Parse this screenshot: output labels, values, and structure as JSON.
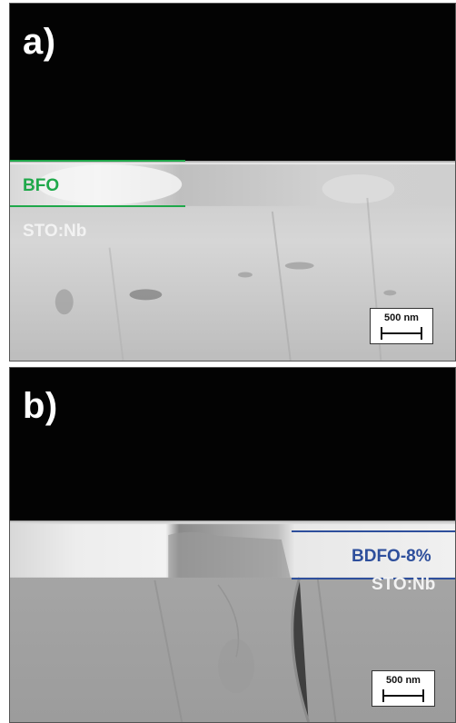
{
  "panels": [
    {
      "label": "a)",
      "layer": "BFO",
      "substrate": "STO:Nb",
      "scale_bar": "500 nm",
      "layer_color": "#1fa84a"
    },
    {
      "label": "b)",
      "layer": "BDFO-8%",
      "substrate": "STO:Nb",
      "scale_bar": "500 nm",
      "layer_color": "#2e4f9c"
    }
  ]
}
